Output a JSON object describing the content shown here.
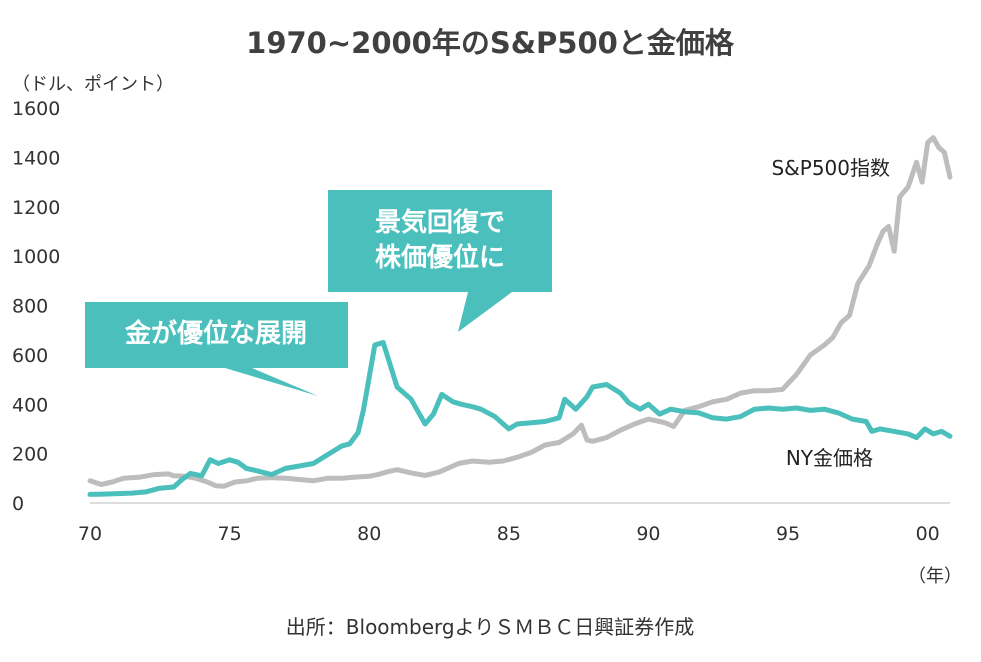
{
  "chart_data": {
    "type": "line",
    "title": "1970~2000年のS&P500と金価格",
    "ylabel": "（ドル、ポイント）",
    "xlabel": "（年）",
    "xlim": [
      1970,
      2000.8
    ],
    "ylim": [
      0,
      1600
    ],
    "y_ticks": [
      0,
      200,
      400,
      600,
      800,
      1000,
      1200,
      1400,
      1600
    ],
    "x_ticks": [
      {
        "value": 1970,
        "label": "70"
      },
      {
        "value": 1975,
        "label": "75"
      },
      {
        "value": 1980,
        "label": "80"
      },
      {
        "value": 1985,
        "label": "85"
      },
      {
        "value": 1990,
        "label": "90"
      },
      {
        "value": 1995,
        "label": "95"
      },
      {
        "value": 2000,
        "label": "00"
      }
    ],
    "source": "出所：BloombergよりＳＭＢＣ日興証券作成",
    "annotations": [
      {
        "lines": [
          "金が優位な展開"
        ],
        "color": "#4bbfbc",
        "text_color": "#ffffff"
      },
      {
        "lines": [
          "景気回復で",
          "株価優位に"
        ],
        "color": "#4bbfbc",
        "text_color": "#ffffff"
      }
    ],
    "series": [
      {
        "name": "S&P500指数",
        "color": "#bdbdbd",
        "x": [
          1970.0,
          1970.4,
          1970.8,
          1971.2,
          1971.8,
          1972.3,
          1972.8,
          1973.0,
          1973.4,
          1973.8,
          1974.2,
          1974.5,
          1974.8,
          1975.2,
          1975.6,
          1976.0,
          1976.5,
          1977.0,
          1977.5,
          1978.0,
          1978.5,
          1979.0,
          1979.5,
          1980.0,
          1980.3,
          1980.7,
          1981.0,
          1981.5,
          1982.0,
          1982.5,
          1982.8,
          1983.2,
          1983.7,
          1984.3,
          1984.8,
          1985.3,
          1985.8,
          1986.3,
          1986.8,
          1987.3,
          1987.6,
          1987.8,
          1988.0,
          1988.5,
          1989.0,
          1989.5,
          1990.0,
          1990.4,
          1990.6,
          1990.9,
          1991.3,
          1991.8,
          1992.3,
          1992.8,
          1993.3,
          1993.8,
          1994.3,
          1994.8,
          1995.3,
          1995.8,
          1996.3,
          1996.6,
          1996.9,
          1997.2,
          1997.5,
          1997.9,
          1998.2,
          1998.4,
          1998.6,
          1998.8,
          1999.0,
          1999.3,
          1999.6,
          1999.8,
          2000.0,
          2000.2,
          2000.4,
          2000.6,
          2000.8
        ],
        "y": [
          90,
          75,
          85,
          100,
          105,
          115,
          118,
          110,
          108,
          100,
          85,
          70,
          68,
          85,
          90,
          100,
          103,
          100,
          95,
          90,
          100,
          100,
          105,
          108,
          115,
          128,
          135,
          122,
          112,
          125,
          140,
          160,
          170,
          165,
          170,
          185,
          205,
          235,
          245,
          280,
          315,
          255,
          250,
          265,
          295,
          320,
          340,
          330,
          325,
          310,
          375,
          390,
          410,
          420,
          445,
          455,
          455,
          460,
          520,
          600,
          640,
          670,
          730,
          760,
          890,
          960,
          1050,
          1100,
          1120,
          1020,
          1240,
          1280,
          1380,
          1300,
          1460,
          1480,
          1440,
          1420,
          1320
        ]
      },
      {
        "name": "NY金価格",
        "color": "#4bbfbc",
        "x": [
          1970.0,
          1970.5,
          1971.0,
          1971.5,
          1972.0,
          1972.5,
          1973.0,
          1973.3,
          1973.6,
          1974.0,
          1974.3,
          1974.6,
          1975.0,
          1975.3,
          1975.6,
          1976.0,
          1976.5,
          1977.0,
          1977.5,
          1978.0,
          1978.5,
          1979.0,
          1979.3,
          1979.6,
          1979.8,
          1980.0,
          1980.2,
          1980.5,
          1981.0,
          1981.5,
          1982.0,
          1982.3,
          1982.6,
          1983.0,
          1983.3,
          1983.7,
          1984.0,
          1984.5,
          1985.0,
          1985.3,
          1985.8,
          1986.3,
          1986.8,
          1987.0,
          1987.4,
          1987.8,
          1988.0,
          1988.5,
          1989.0,
          1989.3,
          1989.7,
          1990.0,
          1990.4,
          1990.8,
          1991.3,
          1991.8,
          1992.3,
          1992.8,
          1993.3,
          1993.8,
          1994.3,
          1994.8,
          1995.3,
          1995.8,
          1996.3,
          1996.8,
          1997.3,
          1997.8,
          1998.0,
          1998.3,
          1998.8,
          1999.3,
          1999.6,
          1999.9,
          2000.2,
          2000.5,
          2000.8
        ],
        "y": [
          35,
          36,
          38,
          40,
          45,
          60,
          65,
          95,
          120,
          110,
          175,
          160,
          175,
          165,
          140,
          130,
          115,
          140,
          150,
          160,
          195,
          230,
          240,
          285,
          380,
          510,
          640,
          650,
          470,
          420,
          320,
          360,
          440,
          410,
          400,
          390,
          380,
          350,
          300,
          320,
          325,
          330,
          345,
          420,
          380,
          430,
          470,
          480,
          445,
          405,
          380,
          400,
          360,
          380,
          370,
          365,
          345,
          340,
          350,
          380,
          385,
          380,
          385,
          375,
          380,
          365,
          340,
          330,
          290,
          300,
          290,
          280,
          265,
          300,
          280,
          290,
          270
        ]
      }
    ]
  }
}
